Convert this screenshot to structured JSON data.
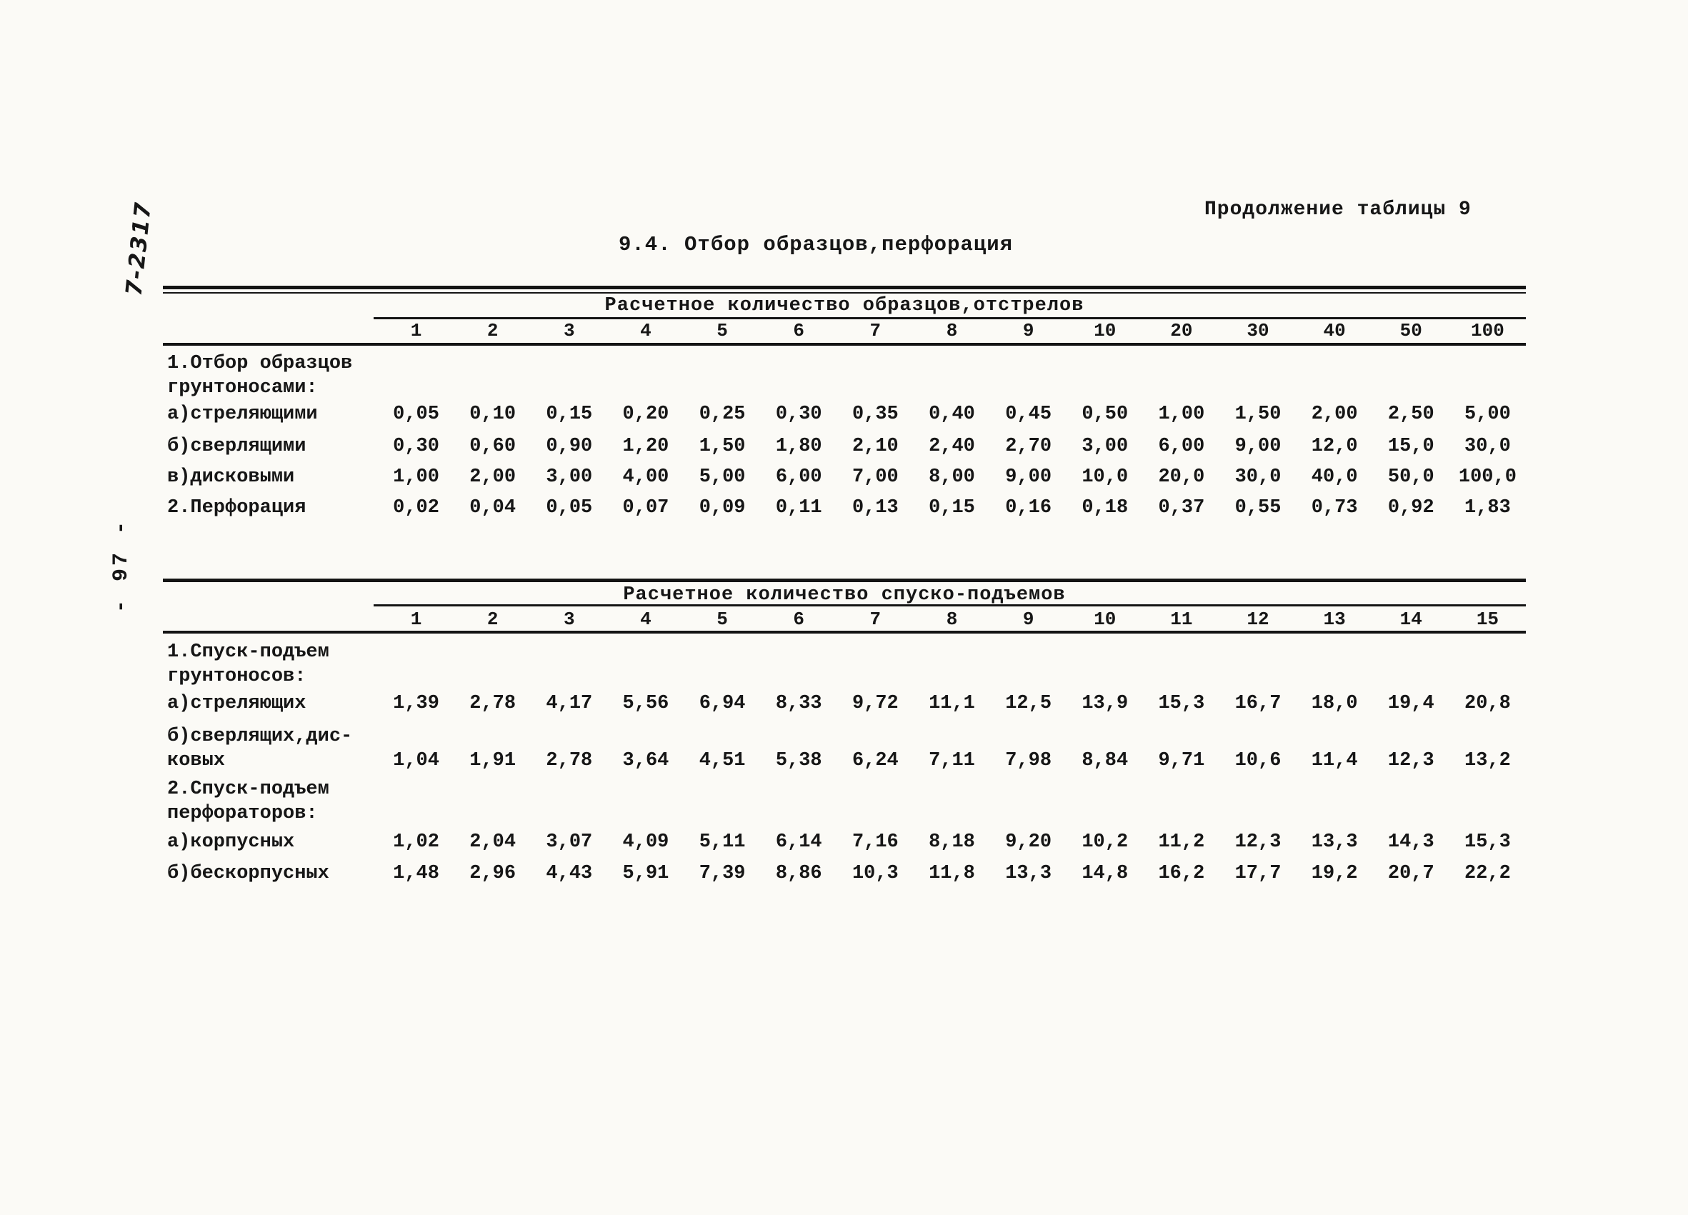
{
  "page": {
    "continuation_note": "Продолжение таблицы 9",
    "section_title": "9.4. Отбор образцов,перфорация",
    "margin_note": "7-2317",
    "page_number": "- 97 -"
  },
  "table1": {
    "header": "Расчетное количество образцов,отстрелов",
    "columns": [
      "1",
      "2",
      "3",
      "4",
      "5",
      "6",
      "7",
      "8",
      "9",
      "10",
      "20",
      "30",
      "40",
      "50",
      "100"
    ],
    "group1_label_line1": "1.Отбор образцов",
    "group1_label_line2": "грунтоносами:",
    "rows": [
      {
        "label": "а)стреляющими",
        "values": [
          "0,05",
          "0,10",
          "0,15",
          "0,20",
          "0,25",
          "0,30",
          "0,35",
          "0,40",
          "0,45",
          "0,50",
          "1,00",
          "1,50",
          "2,00",
          "2,50",
          "5,00"
        ]
      },
      {
        "label": "б)сверлящими",
        "values": [
          "0,30",
          "0,60",
          "0,90",
          "1,20",
          "1,50",
          "1,80",
          "2,10",
          "2,40",
          "2,70",
          "3,00",
          "6,00",
          "9,00",
          "12,0",
          "15,0",
          "30,0"
        ]
      },
      {
        "label": "в)дисковыми",
        "values": [
          "1,00",
          "2,00",
          "3,00",
          "4,00",
          "5,00",
          "6,00",
          "7,00",
          "8,00",
          "9,00",
          "10,0",
          "20,0",
          "30,0",
          "40,0",
          "50,0",
          "100,0"
        ]
      },
      {
        "label": "2.Перфорация",
        "values": [
          "0,02",
          "0,04",
          "0,05",
          "0,07",
          "0,09",
          "0,11",
          "0,13",
          "0,15",
          "0,16",
          "0,18",
          "0,37",
          "0,55",
          "0,73",
          "0,92",
          "1,83"
        ]
      }
    ]
  },
  "table2": {
    "header": "Расчетное количество спуско-подъемов",
    "columns": [
      "1",
      "2",
      "3",
      "4",
      "5",
      "6",
      "7",
      "8",
      "9",
      "10",
      "11",
      "12",
      "13",
      "14",
      "15"
    ],
    "group1_label_line1": "1.Спуск-подъем",
    "group1_label_line2": "грунтоносов:",
    "group2_label_line1": "2.Спуск-подъем",
    "group2_label_line2": "перфораторов:",
    "rows": [
      {
        "label": "а)стреляющих",
        "values": [
          "1,39",
          "2,78",
          "4,17",
          "5,56",
          "6,94",
          "8,33",
          "9,72",
          "11,1",
          "12,5",
          "13,9",
          "15,3",
          "16,7",
          "18,0",
          "19,4",
          "20,8"
        ]
      },
      {
        "label_line1": "б)сверлящих,дис-",
        "label_line2": "ковых",
        "values": [
          "1,04",
          "1,91",
          "2,78",
          "3,64",
          "4,51",
          "5,38",
          "6,24",
          "7,11",
          "7,98",
          "8,84",
          "9,71",
          "10,6",
          "11,4",
          "12,3",
          "13,2"
        ]
      },
      {
        "label": "а)корпусных",
        "values": [
          "1,02",
          "2,04",
          "3,07",
          "4,09",
          "5,11",
          "6,14",
          "7,16",
          "8,18",
          "9,20",
          "10,2",
          "11,2",
          "12,3",
          "13,3",
          "14,3",
          "15,3"
        ]
      },
      {
        "label": "б)бескорпусных",
        "values": [
          "1,48",
          "2,96",
          "4,43",
          "5,91",
          "7,39",
          "8,86",
          "10,3",
          "11,8",
          "13,3",
          "14,8",
          "16,2",
          "17,7",
          "19,2",
          "20,7",
          "22,2"
        ]
      }
    ]
  }
}
